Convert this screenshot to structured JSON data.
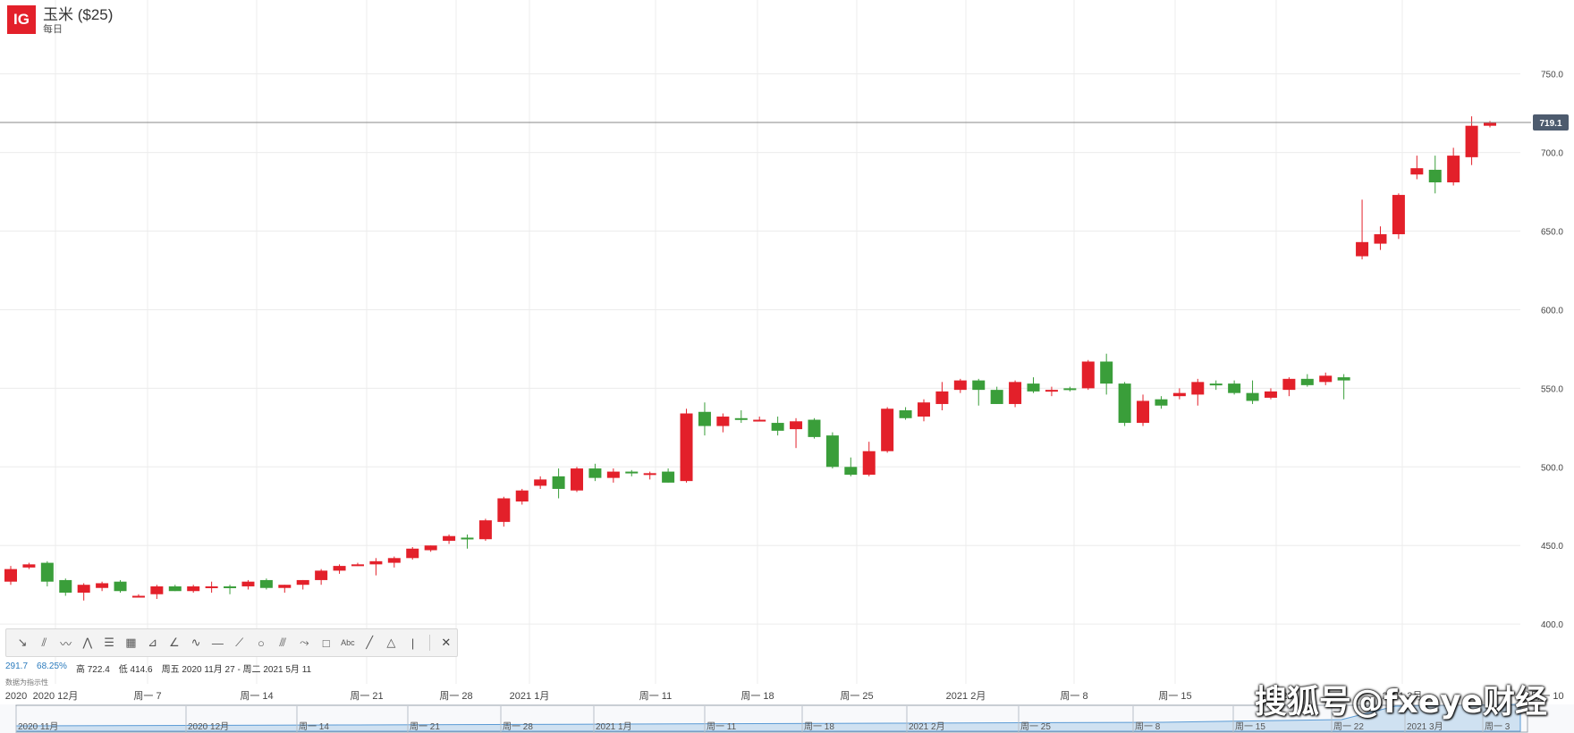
{
  "header": {
    "logo_text": "IG",
    "instrument": "玉米 ($25)",
    "interval": "每日"
  },
  "current_price": "719.1",
  "colors": {
    "up": "#e3202a",
    "down": "#3a9e3a",
    "badge": "#4d5b6e",
    "navigator_fill": "#cfe1f1",
    "navigator_line": "#5b9bd5"
  },
  "chart_data": {
    "type": "candlestick",
    "y_ticks": [
      "750.0",
      "700.0",
      "650.0",
      "600.0",
      "550.0",
      "500.0",
      "450.0",
      "400.0"
    ],
    "ylim": [
      362,
      797
    ],
    "x_labels": [
      "2020",
      "2020 12月",
      "周一 7",
      "周一 14",
      "周一 21",
      "周一 28",
      "2021 1月",
      "周一 11",
      "周一 18",
      "周一 25",
      "2021 2月",
      "周一 8",
      "周一 15",
      "周一 22",
      "2021 3月",
      "周一 10"
    ],
    "candles": [
      {
        "o": 427,
        "h": 437,
        "l": 425,
        "c": 435
      },
      {
        "o": 436,
        "h": 439,
        "l": 435,
        "c": 438
      },
      {
        "o": 439,
        "h": 440,
        "l": 424,
        "c": 427
      },
      {
        "o": 428,
        "h": 429,
        "l": 418,
        "c": 420
      },
      {
        "o": 420,
        "h": 426,
        "l": 415,
        "c": 425
      },
      {
        "o": 423,
        "h": 427,
        "l": 421,
        "c": 426
      },
      {
        "o": 427,
        "h": 428,
        "l": 420,
        "c": 421
      },
      {
        "o": 418,
        "h": 419,
        "l": 417,
        "c": 418
      },
      {
        "o": 419,
        "h": 425,
        "l": 416,
        "c": 424
      },
      {
        "o": 424,
        "h": 425,
        "l": 421,
        "c": 421
      },
      {
        "o": 421,
        "h": 425,
        "l": 420,
        "c": 424
      },
      {
        "o": 424,
        "h": 427,
        "l": 420,
        "c": 424
      },
      {
        "o": 424,
        "h": 425,
        "l": 419,
        "c": 423
      },
      {
        "o": 424,
        "h": 428,
        "l": 422,
        "c": 427
      },
      {
        "o": 428,
        "h": 429,
        "l": 422,
        "c": 423
      },
      {
        "o": 423,
        "h": 425,
        "l": 420,
        "c": 425
      },
      {
        "o": 425,
        "h": 428,
        "l": 422,
        "c": 428
      },
      {
        "o": 428,
        "h": 435,
        "l": 425,
        "c": 434
      },
      {
        "o": 434,
        "h": 438,
        "l": 432,
        "c": 437
      },
      {
        "o": 438,
        "h": 439,
        "l": 437,
        "c": 438
      },
      {
        "o": 438,
        "h": 442,
        "l": 431,
        "c": 440
      },
      {
        "o": 439,
        "h": 443,
        "l": 436,
        "c": 442
      },
      {
        "o": 442,
        "h": 449,
        "l": 441,
        "c": 448
      },
      {
        "o": 447,
        "h": 450,
        "l": 446,
        "c": 450
      },
      {
        "o": 453,
        "h": 457,
        "l": 451,
        "c": 456
      },
      {
        "o": 455,
        "h": 457,
        "l": 448,
        "c": 454
      },
      {
        "o": 454,
        "h": 467,
        "l": 453,
        "c": 466
      },
      {
        "o": 465,
        "h": 481,
        "l": 462,
        "c": 480
      },
      {
        "o": 478,
        "h": 486,
        "l": 476,
        "c": 485
      },
      {
        "o": 488,
        "h": 494,
        "l": 486,
        "c": 492
      },
      {
        "o": 494,
        "h": 499,
        "l": 480,
        "c": 486
      },
      {
        "o": 485,
        "h": 500,
        "l": 484,
        "c": 499
      },
      {
        "o": 499,
        "h": 502,
        "l": 491,
        "c": 493
      },
      {
        "o": 493,
        "h": 499,
        "l": 490,
        "c": 497
      },
      {
        "o": 497,
        "h": 498,
        "l": 494,
        "c": 496
      },
      {
        "o": 496,
        "h": 497,
        "l": 492,
        "c": 496
      },
      {
        "o": 497,
        "h": 499,
        "l": 490,
        "c": 490
      },
      {
        "o": 491,
        "h": 537,
        "l": 490,
        "c": 534
      },
      {
        "o": 535,
        "h": 541,
        "l": 520,
        "c": 526
      },
      {
        "o": 526,
        "h": 534,
        "l": 522,
        "c": 532
      },
      {
        "o": 531,
        "h": 536,
        "l": 528,
        "c": 530
      },
      {
        "o": 530,
        "h": 532,
        "l": 529,
        "c": 530
      },
      {
        "o": 528,
        "h": 532,
        "l": 520,
        "c": 523
      },
      {
        "o": 524,
        "h": 531,
        "l": 512,
        "c": 529
      },
      {
        "o": 530,
        "h": 531,
        "l": 518,
        "c": 519
      },
      {
        "o": 520,
        "h": 522,
        "l": 499,
        "c": 500
      },
      {
        "o": 500,
        "h": 506,
        "l": 494,
        "c": 495
      },
      {
        "o": 495,
        "h": 516,
        "l": 494,
        "c": 510
      },
      {
        "o": 510,
        "h": 538,
        "l": 509,
        "c": 537
      },
      {
        "o": 536,
        "h": 538,
        "l": 530,
        "c": 531
      },
      {
        "o": 532,
        "h": 543,
        "l": 529,
        "c": 541
      },
      {
        "o": 540,
        "h": 554,
        "l": 536,
        "c": 548
      },
      {
        "o": 549,
        "h": 556,
        "l": 547,
        "c": 555
      },
      {
        "o": 555,
        "h": 556,
        "l": 539,
        "c": 549
      },
      {
        "o": 549,
        "h": 551,
        "l": 540,
        "c": 540
      },
      {
        "o": 540,
        "h": 555,
        "l": 538,
        "c": 554
      },
      {
        "o": 553,
        "h": 557,
        "l": 547,
        "c": 548
      },
      {
        "o": 548,
        "h": 551,
        "l": 545,
        "c": 549
      },
      {
        "o": 550,
        "h": 551,
        "l": 548,
        "c": 549
      },
      {
        "o": 550,
        "h": 568,
        "l": 549,
        "c": 567
      },
      {
        "o": 567,
        "h": 572,
        "l": 546,
        "c": 553
      },
      {
        "o": 553,
        "h": 554,
        "l": 526,
        "c": 528
      },
      {
        "o": 528,
        "h": 546,
        "l": 526,
        "c": 542
      },
      {
        "o": 543,
        "h": 545,
        "l": 537,
        "c": 539
      },
      {
        "o": 545,
        "h": 550,
        "l": 543,
        "c": 547
      },
      {
        "o": 546,
        "h": 556,
        "l": 539,
        "c": 554
      },
      {
        "o": 553,
        "h": 555,
        "l": 549,
        "c": 552
      },
      {
        "o": 553,
        "h": 555,
        "l": 546,
        "c": 547
      },
      {
        "o": 547,
        "h": 555,
        "l": 540,
        "c": 542
      },
      {
        "o": 544,
        "h": 550,
        "l": 543,
        "c": 548
      },
      {
        "o": 549,
        "h": 557,
        "l": 545,
        "c": 556
      },
      {
        "o": 556,
        "h": 559,
        "l": 551,
        "c": 552
      },
      {
        "o": 554,
        "h": 560,
        "l": 552,
        "c": 558
      },
      {
        "o": 557,
        "h": 559,
        "l": 543,
        "c": 555
      },
      {
        "o": 634,
        "h": 670,
        "l": 632,
        "c": 643
      },
      {
        "o": 642,
        "h": 653,
        "l": 638,
        "c": 648
      },
      {
        "o": 648,
        "h": 674,
        "l": 645,
        "c": 673
      },
      {
        "o": 686,
        "h": 698,
        "l": 683,
        "c": 690
      },
      {
        "o": 689,
        "h": 698,
        "l": 674,
        "c": 681
      },
      {
        "o": 681,
        "h": 703,
        "l": 679,
        "c": 698
      },
      {
        "o": 697,
        "h": 723,
        "l": 692,
        "c": 717
      },
      {
        "o": 717,
        "h": 720,
        "l": 716,
        "c": 719
      }
    ],
    "navigator_labels": [
      "2020 11月",
      "2020 12月",
      "周一 14",
      "周一 21",
      "周一 28",
      "2021 1月",
      "周一 11",
      "周一 18",
      "2021 2月",
      "周一 25",
      "周一 8",
      "周一 15",
      "周一 22",
      "2021 3月",
      "周一 3"
    ]
  },
  "toolbar": {
    "tools": [
      {
        "name": "arrow-tool-icon",
        "glyph": "↘"
      },
      {
        "name": "parallel-lines-tool-icon",
        "glyph": "⫽"
      },
      {
        "name": "wave-tool-icon",
        "glyph": "〰"
      },
      {
        "name": "zigzag-tool-icon",
        "glyph": "⋀"
      },
      {
        "name": "fib-retracement-tool-icon",
        "glyph": "☰"
      },
      {
        "name": "fib-grid-tool-icon",
        "glyph": "▦"
      },
      {
        "name": "fan-tool-icon",
        "glyph": "⊿"
      },
      {
        "name": "trend-angle-tool-icon",
        "glyph": "∠"
      },
      {
        "name": "wave-pattern-tool-icon",
        "glyph": "∿"
      },
      {
        "name": "horizontal-line-tool-icon",
        "glyph": "—"
      },
      {
        "name": "ruler-tool-icon",
        "glyph": "⟋"
      },
      {
        "name": "circle-tool-icon",
        "glyph": "○"
      },
      {
        "name": "channel-tool-icon",
        "glyph": "⫻"
      },
      {
        "name": "path-tool-icon",
        "glyph": "⤳"
      },
      {
        "name": "rectangle-tool-icon",
        "glyph": "□"
      },
      {
        "name": "text-tool-icon",
        "glyph": "Abc"
      },
      {
        "name": "line-tool-icon",
        "glyph": "╱"
      },
      {
        "name": "triangle-tool-icon",
        "glyph": "△"
      },
      {
        "name": "vertical-line-tool-icon",
        "glyph": "|"
      }
    ],
    "close_glyph": "✕"
  },
  "stats": {
    "change": "291.7",
    "change_pct": "68.25%",
    "high_label": "高",
    "high": "722.4",
    "low_label": "低",
    "low": "414.6",
    "range": "周五 2020 11月 27 - 周二 2021 5月 11"
  },
  "indicator_label": "数据为指示性",
  "watermark": "搜狐号@fxeye财经"
}
